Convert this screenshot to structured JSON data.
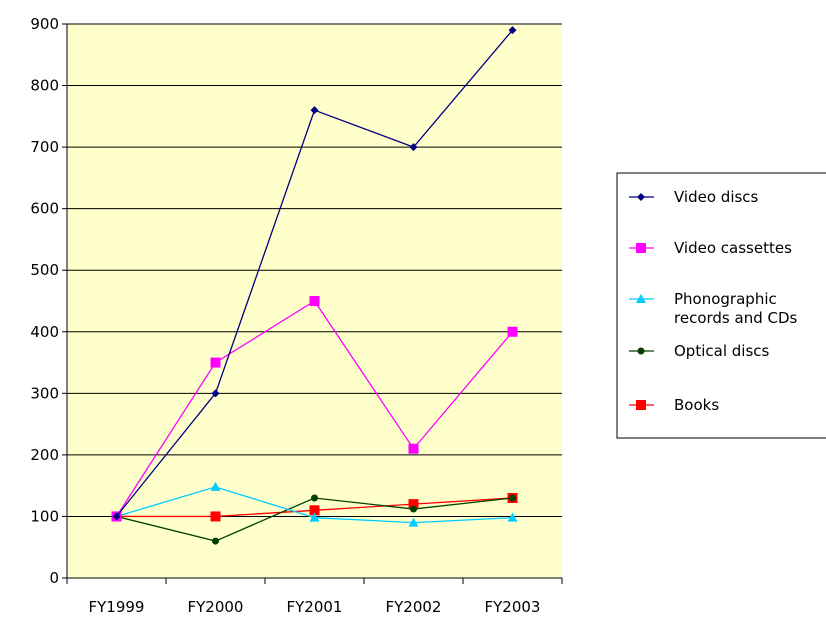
{
  "chart_data": {
    "type": "line",
    "categories": [
      "FY1999",
      "FY2000",
      "FY2001",
      "FY2002",
      "FY2003"
    ],
    "ylim": [
      0,
      900
    ],
    "yticks": [
      0,
      100,
      200,
      300,
      400,
      500,
      600,
      700,
      800,
      900
    ],
    "grid": true,
    "legend_position": "right",
    "series": [
      {
        "name": "Video discs",
        "color": "#000080",
        "marker": "diamond",
        "values": [
          100,
          300,
          760,
          700,
          890
        ]
      },
      {
        "name": "Video cassettes",
        "color": "#ff00ff",
        "marker": "square",
        "values": [
          100,
          350,
          450,
          210,
          400
        ]
      },
      {
        "name": "Phonographic records and CDs",
        "name_lines": [
          "Phonographic",
          "records and CDs"
        ],
        "color": "#00ccff",
        "marker": "triangle",
        "values": [
          100,
          148,
          98,
          90,
          98
        ]
      },
      {
        "name": "Optical discs",
        "color": "#004000",
        "marker": "circle",
        "values": [
          100,
          60,
          130,
          112,
          130
        ]
      },
      {
        "name": "Books",
        "color": "#ff0000",
        "marker": "square",
        "values": [
          100,
          100,
          110,
          120,
          130
        ]
      }
    ],
    "plot_background": "#ffffcc"
  }
}
